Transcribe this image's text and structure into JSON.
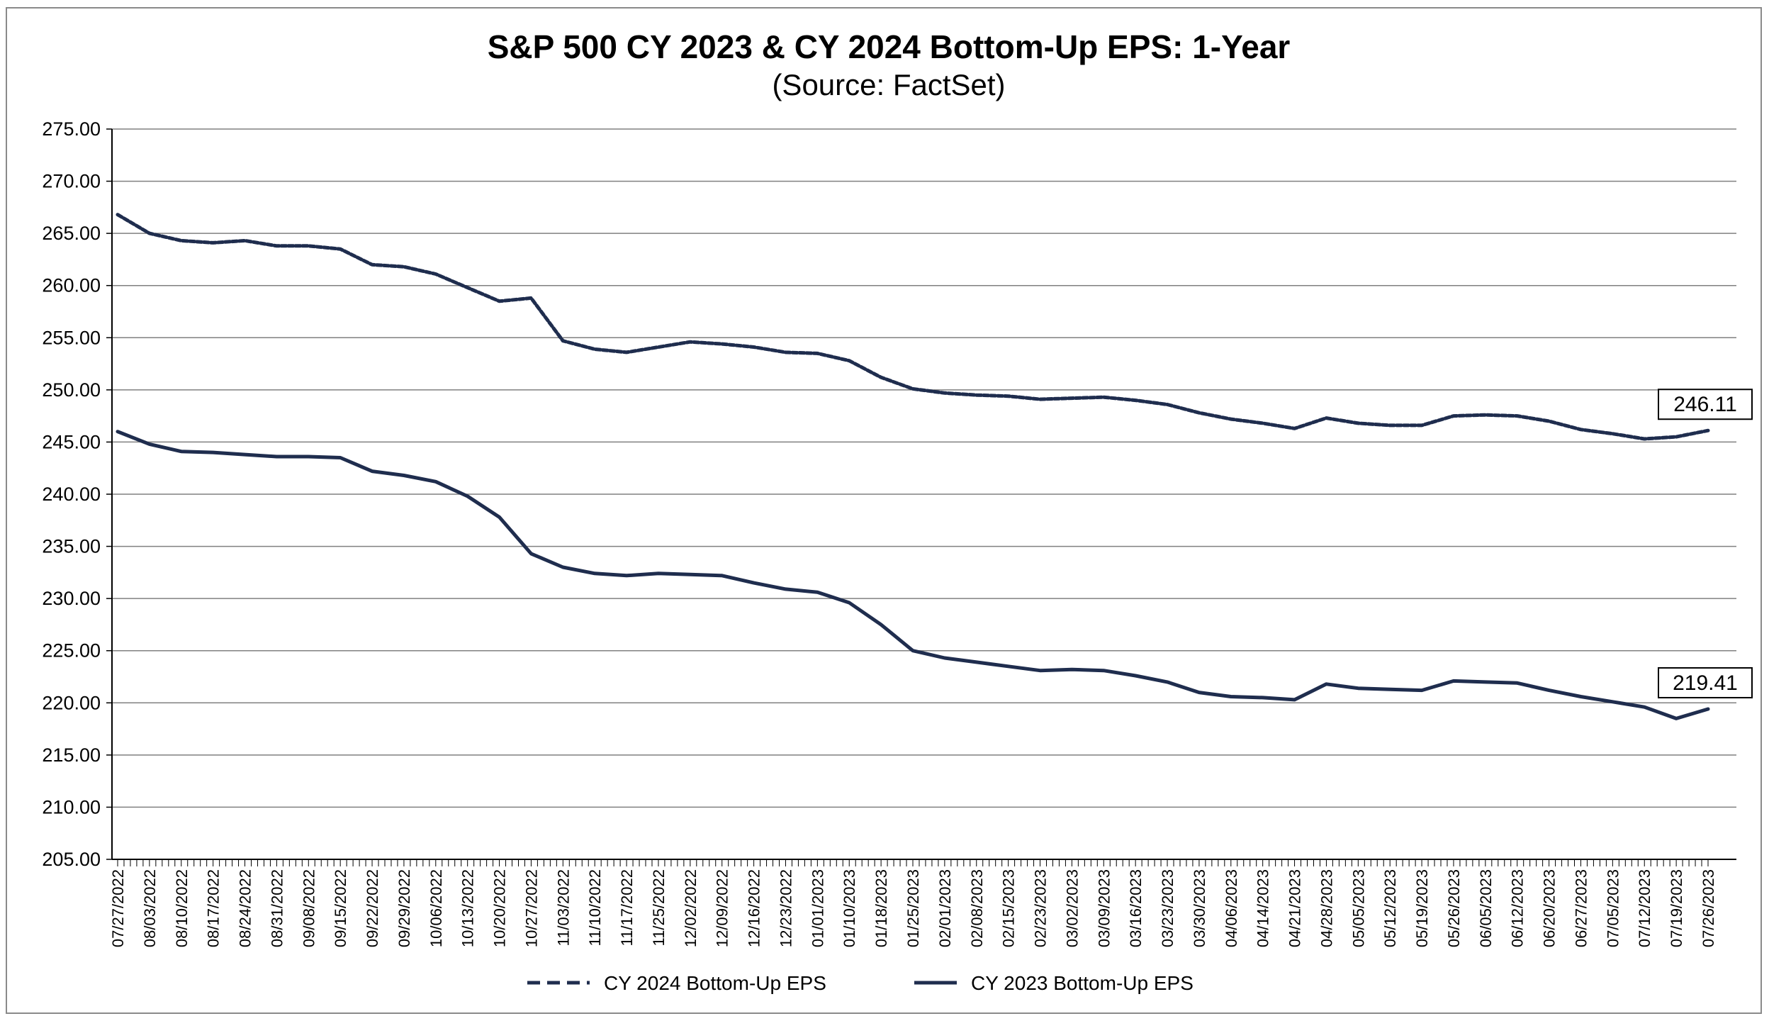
{
  "chart_data": {
    "type": "line",
    "title": "S&P 500 CY 2023 & CY 2024 Bottom-Up EPS: 1-Year",
    "subtitle": "(Source: FactSet)",
    "xlabel": "",
    "ylabel": "",
    "ylim": [
      205,
      275
    ],
    "y_ticks": [
      "275.00",
      "270.00",
      "265.00",
      "260.00",
      "255.00",
      "250.00",
      "245.00",
      "240.00",
      "235.00",
      "230.00",
      "225.00",
      "220.00",
      "215.00",
      "210.00",
      "205.00"
    ],
    "x_ticks": [
      "07/27/2022",
      "08/03/2022",
      "08/10/2022",
      "08/17/2022",
      "08/24/2022",
      "08/31/2022",
      "09/08/2022",
      "09/15/2022",
      "09/22/2022",
      "09/29/2022",
      "10/06/2022",
      "10/13/2022",
      "10/20/2022",
      "10/27/2022",
      "11/03/2022",
      "11/10/2022",
      "11/17/2022",
      "11/25/2022",
      "12/02/2022",
      "12/09/2022",
      "12/16/2022",
      "12/23/2022",
      "01/01/2023",
      "01/10/2023",
      "01/18/2023",
      "01/25/2023",
      "02/01/2023",
      "02/08/2023",
      "02/15/2023",
      "02/23/2023",
      "03/02/2023",
      "03/09/2023",
      "03/16/2023",
      "03/23/2023",
      "03/30/2023",
      "04/06/2023",
      "04/14/2023",
      "04/21/2023",
      "04/28/2023",
      "05/05/2023",
      "05/12/2023",
      "05/19/2023",
      "05/26/2023",
      "06/05/2023",
      "06/12/2023",
      "06/20/2023",
      "06/27/2023",
      "07/05/2023",
      "07/12/2023",
      "07/19/2023",
      "07/26/2023"
    ],
    "grid": true,
    "legend_position": "bottom",
    "series": [
      {
        "name": "CY 2024 Bottom-Up EPS",
        "style": "dashed",
        "color": "#1f2d4e",
        "end_label": "246.11",
        "values": [
          266.8,
          265.0,
          264.3,
          264.1,
          264.3,
          263.8,
          263.8,
          263.5,
          262.0,
          261.8,
          261.1,
          259.8,
          258.5,
          258.8,
          254.7,
          253.9,
          253.6,
          254.1,
          254.6,
          254.4,
          254.1,
          253.6,
          253.5,
          252.8,
          251.2,
          250.1,
          249.7,
          249.5,
          249.4,
          249.1,
          249.2,
          249.3,
          249.0,
          248.6,
          247.8,
          247.2,
          246.8,
          246.3,
          247.3,
          246.8,
          246.6,
          246.6,
          247.5,
          247.6,
          247.5,
          247.0,
          246.2,
          245.8,
          245.3,
          245.5,
          246.1
        ]
      },
      {
        "name": "CY 2023 Bottom-Up EPS",
        "style": "solid",
        "color": "#1f2d4e",
        "end_label": "219.41",
        "values": [
          246.0,
          244.8,
          244.1,
          244.0,
          243.8,
          243.6,
          243.6,
          243.5,
          242.2,
          241.8,
          241.2,
          239.8,
          237.8,
          234.3,
          233.0,
          232.4,
          232.2,
          232.4,
          232.3,
          232.2,
          231.5,
          230.9,
          230.6,
          229.6,
          227.5,
          225.0,
          224.3,
          223.9,
          223.5,
          223.1,
          223.2,
          223.1,
          222.6,
          222.0,
          221.0,
          220.6,
          220.5,
          220.3,
          221.8,
          221.4,
          221.3,
          221.2,
          222.1,
          222.0,
          221.9,
          221.2,
          220.6,
          220.1,
          219.6,
          218.5,
          219.41
        ]
      }
    ]
  }
}
